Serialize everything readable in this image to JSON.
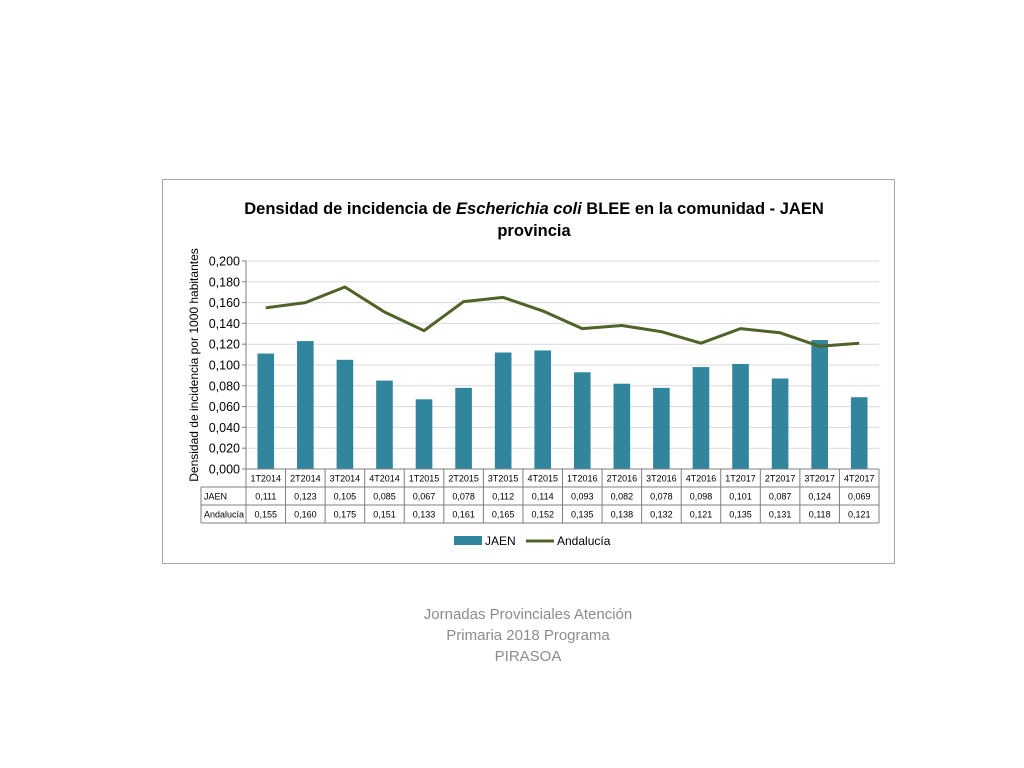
{
  "chart_data": {
    "type": "bar",
    "title_line1_parts": [
      "Densidad de incidencia de ",
      "Escherichia coli",
      " BLEE en la comunidad - JAEN"
    ],
    "title_line2": "provincia",
    "ylabel": "Densidad de incidencia por 1000 habitantes",
    "ylim": [
      0,
      0.2
    ],
    "yticks": [
      "0,000",
      "0,020",
      "0,040",
      "0,060",
      "0,080",
      "0,100",
      "0,120",
      "0,140",
      "0,160",
      "0,180",
      "0,200"
    ],
    "categories": [
      "1T2014",
      "2T2014",
      "3T2014",
      "4T2014",
      "1T2015",
      "2T2015",
      "3T2015",
      "4T2015",
      "1T2016",
      "2T2016",
      "3T2016",
      "4T2016",
      "1T2017",
      "2T2017",
      "3T2017",
      "4T2017"
    ],
    "series": [
      {
        "name": "JAEN",
        "kind": "bar",
        "color": "#31859c",
        "values": [
          0.111,
          0.123,
          0.105,
          0.085,
          0.067,
          0.078,
          0.112,
          0.114,
          0.093,
          0.082,
          0.078,
          0.098,
          0.101,
          0.087,
          0.124,
          0.069
        ],
        "labels": [
          "0,111",
          "0,123",
          "0,105",
          "0,085",
          "0,067",
          "0,078",
          "0,112",
          "0,114",
          "0,093",
          "0,082",
          "0,078",
          "0,098",
          "0,101",
          "0,087",
          "0,124",
          "0,069"
        ]
      },
      {
        "name": "Andalucía",
        "kind": "line",
        "color": "#4f6228",
        "values": [
          0.155,
          0.16,
          0.175,
          0.151,
          0.133,
          0.161,
          0.165,
          0.152,
          0.135,
          0.138,
          0.132,
          0.121,
          0.135,
          0.131,
          0.118,
          0.121
        ],
        "labels": [
          "0,155",
          "0,160",
          "0,175",
          "0,151",
          "0,133",
          "0,161",
          "0,165",
          "0,152",
          "0,135",
          "0,138",
          "0,132",
          "0,121",
          "0,135",
          "0,131",
          "0,118",
          "0,121"
        ]
      }
    ],
    "grid": true,
    "legend": "bottom",
    "data_table": true
  },
  "caption": {
    "lines": [
      "Jornadas Provinciales Atención",
      "Primaria 2018  Programa",
      "PIRASOA"
    ]
  },
  "colors": {
    "frame_border": "#a6a6a6",
    "gridline": "#d9d9d9",
    "caption_text": "#8c8c8c"
  }
}
